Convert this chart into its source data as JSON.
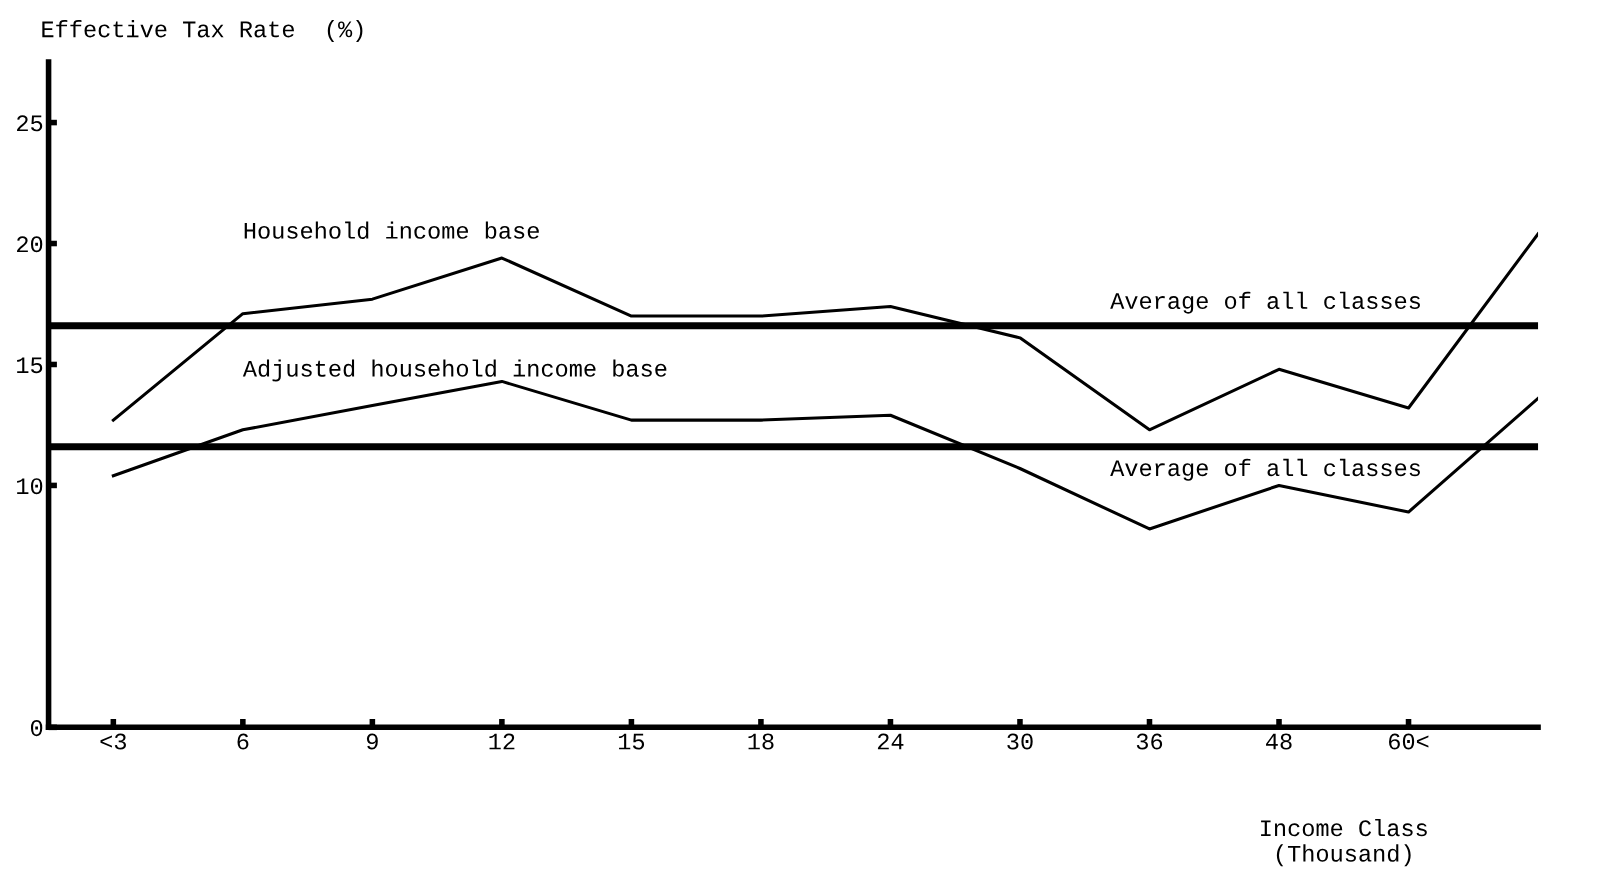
{
  "chart_data": {
    "type": "line",
    "ylabel": "Effective Tax Rate  (%)",
    "xlabel": "Income Class\n(Thousand)",
    "categories": [
      "<3",
      "6",
      "9",
      "12",
      "15",
      "18",
      "24",
      "30",
      "36",
      "48",
      "60<",
      null
    ],
    "series": [
      {
        "name": "Household income base",
        "color": "#000000",
        "values": [
          12.7,
          17.1,
          17.7,
          19.4,
          17.0,
          17.0,
          17.4,
          16.1,
          12.3,
          14.8,
          13.2,
          20.4
        ]
      },
      {
        "name": "Adjusted household income base",
        "color": "#000000",
        "values": [
          10.4,
          12.3,
          13.3,
          14.3,
          12.7,
          12.7,
          12.9,
          10.7,
          8.2,
          10.0,
          8.9,
          13.6
        ]
      }
    ],
    "ref_lines": [
      {
        "axis": "y",
        "value": 16.6,
        "label": "Average of all classes",
        "color": "#000000"
      },
      {
        "axis": "y",
        "value": 11.6,
        "label": "Average of all classes",
        "color": "#000000"
      }
    ],
    "ylim": [
      0,
      27.5
    ],
    "yticks": [
      0,
      10,
      15,
      20,
      25
    ],
    "grid": false,
    "legend": false,
    "marker": "none",
    "line_style": "solid"
  }
}
